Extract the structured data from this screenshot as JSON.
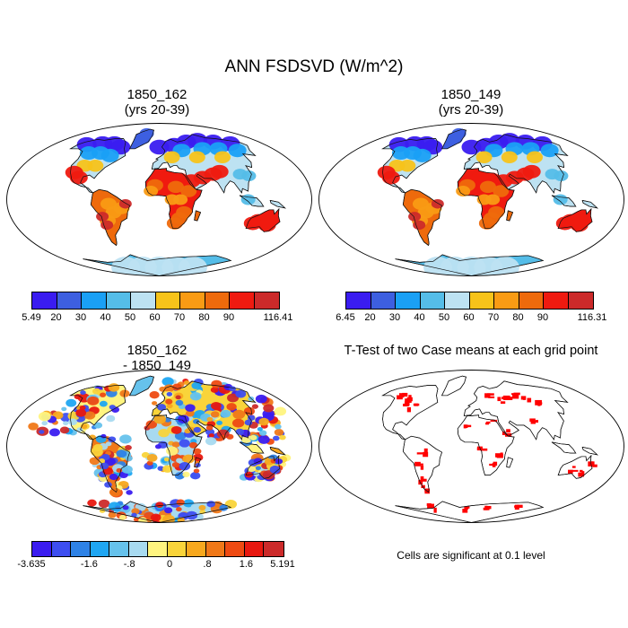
{
  "title": "ANN FSDSVD (W/m^2)",
  "panels": [
    {
      "title_line1": "1850_162",
      "title_line2": "(yrs 20-39)",
      "colorbar": {
        "colors": [
          "#3a1cf0",
          "#3d5fe0",
          "#1aa0f5",
          "#55bde8",
          "#bde2f2",
          "#f7c31a",
          "#f99b14",
          "#ee6a0c",
          "#ef1a10",
          "#cc2a2a"
        ],
        "labels": [
          "5.49",
          "20",
          "30",
          "40",
          "50",
          "60",
          "70",
          "80",
          "90",
          "116.41"
        ]
      }
    },
    {
      "title_line1": "1850_149",
      "title_line2": "(yrs 20-39)",
      "colorbar": {
        "colors": [
          "#3a1cf0",
          "#3d5fe0",
          "#1aa0f5",
          "#55bde8",
          "#bde2f2",
          "#f7c31a",
          "#f99b14",
          "#ee6a0c",
          "#ef1a10",
          "#cc2a2a"
        ],
        "labels": [
          "6.45",
          "20",
          "30",
          "40",
          "50",
          "60",
          "70",
          "80",
          "90",
          "116.31"
        ]
      }
    },
    {
      "title_line1": "1850_162",
      "title_line2": "- 1850_149",
      "colorbar": {
        "colors": [
          "#3a1cf0",
          "#3d4ef0",
          "#2e82e6",
          "#1fa6f2",
          "#66c2ec",
          "#a8daf0",
          "#fff47f",
          "#f9d43a",
          "#f7a81e",
          "#f07818",
          "#ee4a12",
          "#e81810",
          "#cc2a2a"
        ],
        "labels": [
          "-3.635",
          "-1.6",
          "-.8",
          "0",
          ".8",
          "1.6",
          "5.191"
        ]
      }
    },
    {
      "title": "T-Test of two Case means at each grid point",
      "note": "Cells are significant at 0.1 level",
      "significance_color": "#ff0000"
    }
  ]
}
